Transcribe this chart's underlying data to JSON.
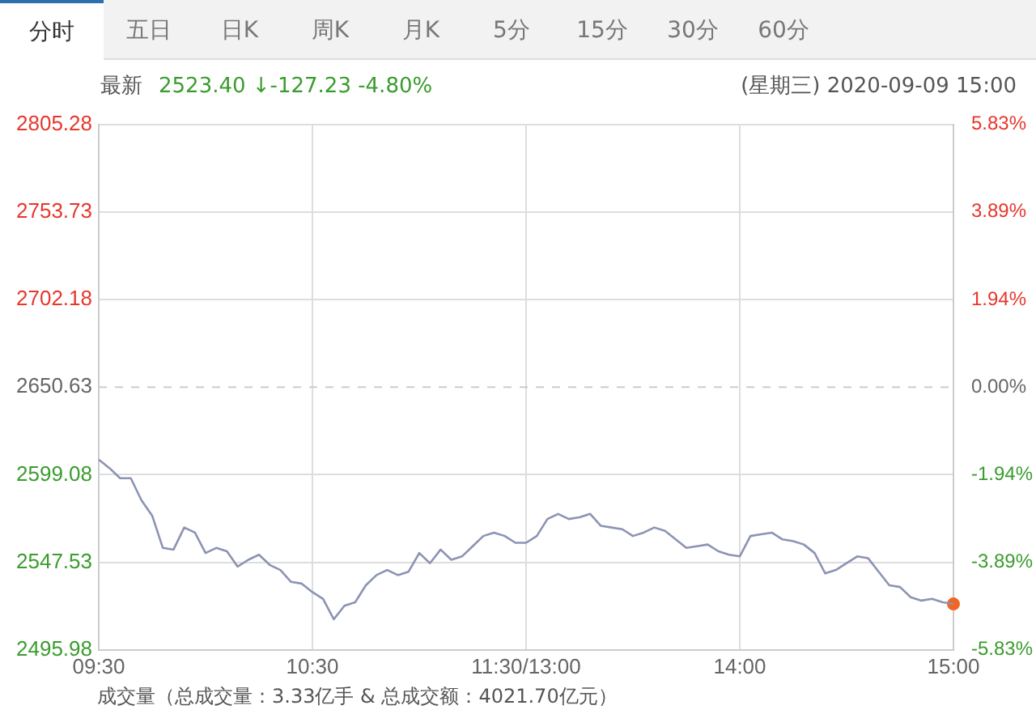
{
  "chart_data": {
    "type": "line",
    "title": "最新",
    "subtitle": "2523.40 ↓-127.23 -4.80%",
    "annotations": [
      "分时",
      "五日",
      "日K",
      "周K",
      "月K",
      "5分",
      "15分",
      "30分",
      "60分",
      "(星期三) 2020-09-09 15:00",
      "成交量（总成交量：3.33亿手 & 总成交额：4021.70亿元）"
    ],
    "categories": [
      "09:30",
      null,
      null,
      null,
      null,
      null,
      null,
      null,
      null,
      null,
      null,
      null,
      null,
      null,
      null,
      null,
      null,
      null,
      null,
      null,
      "10:30",
      null,
      null,
      null,
      null,
      null,
      null,
      null,
      null,
      null,
      null,
      null,
      null,
      null,
      null,
      null,
      null,
      null,
      null,
      null,
      "11:30/13:00",
      null,
      null,
      null,
      null,
      null,
      null,
      null,
      null,
      null,
      null,
      null,
      null,
      null,
      null,
      null,
      null,
      null,
      null,
      null,
      "14:00",
      null,
      null,
      null,
      null,
      null,
      null,
      null,
      null,
      null,
      null,
      null,
      null,
      null,
      null,
      null,
      null,
      null,
      null,
      null,
      "15:00"
    ],
    "series": [
      {
        "color": "#8c93b3",
        "values": [
          2608,
          2603,
          2597,
          2597,
          2584,
          2575,
          2556,
          2555,
          2568,
          2565,
          2553,
          2556,
          2554,
          2545,
          2549,
          2552,
          2546,
          2543,
          2536,
          2535,
          2530,
          2526,
          2514,
          2522,
          2524,
          2534,
          2540,
          2543,
          2540,
          2542,
          2553,
          2547,
          2555,
          2549,
          2551,
          2557,
          2563,
          2565,
          2563,
          2559,
          2559,
          2563,
          2573,
          2576,
          2573,
          2574,
          2576,
          2569,
          2568,
          2567,
          2563,
          2565,
          2568,
          2566,
          2561,
          2556,
          2557,
          2558,
          2554,
          2552,
          2551,
          2563,
          2564,
          2565,
          2561,
          2560,
          2558,
          2553,
          2541,
          2543,
          2547,
          2551,
          2550,
          2542,
          2534,
          2533,
          2527,
          2525,
          2526,
          2524,
          2523
        ]
      },
      {
        "type": "scatter",
        "marker": "circle",
        "color": "#f26522",
        "values": [
          null,
          null,
          null,
          null,
          null,
          null,
          null,
          null,
          null,
          null,
          null,
          null,
          null,
          null,
          null,
          null,
          null,
          null,
          null,
          null,
          null,
          null,
          null,
          null,
          null,
          null,
          null,
          null,
          null,
          null,
          null,
          null,
          null,
          null,
          null,
          null,
          null,
          null,
          null,
          null,
          null,
          null,
          null,
          null,
          null,
          null,
          null,
          null,
          null,
          null,
          null,
          null,
          null,
          null,
          null,
          null,
          null,
          null,
          null,
          null,
          null,
          null,
          null,
          null,
          null,
          null,
          null,
          null,
          null,
          null,
          null,
          null,
          null,
          null,
          null,
          null,
          null,
          null,
          null,
          null,
          2523
        ]
      }
    ],
    "ylim": [
      2495.98,
      2805.28
    ],
    "yticks": [
      2495.98,
      2547.53,
      2599.08,
      2650.63,
      2702.18,
      2753.73,
      2805.28
    ],
    "y2lim": [
      -5.83,
      5.83
    ],
    "y2ticks": [
      {
        "value": -5.83,
        "label": "-5.83%"
      },
      {
        "value": -3.89,
        "label": "-3.89%"
      },
      {
        "value": -1.94,
        "label": "-1.94%"
      },
      {
        "value": 0,
        "label": "0.00%"
      },
      {
        "value": 1.94,
        "label": "1.94%"
      },
      {
        "value": 3.89,
        "label": "3.89%"
      },
      {
        "value": 5.83,
        "label": "5.83%"
      }
    ],
    "ref_lines": [
      {
        "axis": "y",
        "value": 2650.63,
        "color": "#cccccc",
        "line_style": "dashed"
      }
    ],
    "grid": true,
    "marker": "none",
    "line_style": "solid",
    "legend": false
  }
}
